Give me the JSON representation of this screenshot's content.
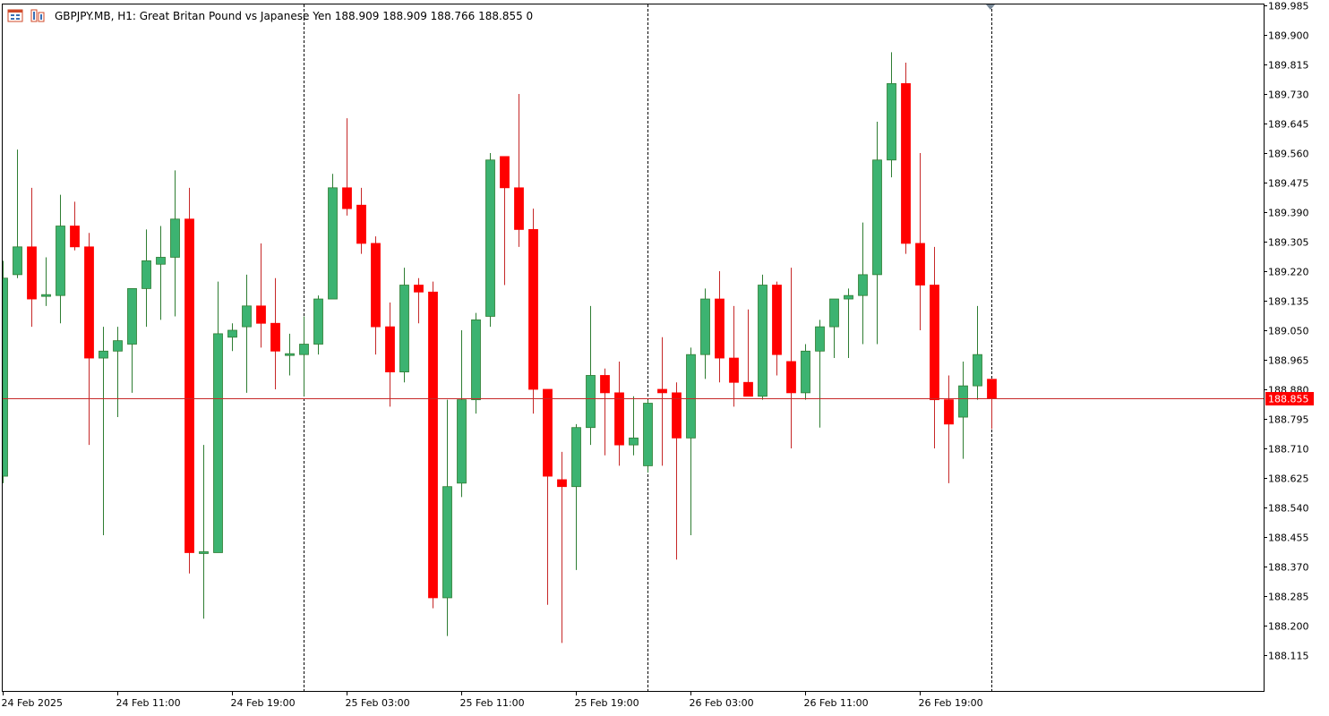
{
  "header": {
    "symbol": "GBPJPY.MB",
    "timeframe": "H1:",
    "description": "Great Britan Pound vs Japanese Yen",
    "ohlc": "188.909 188.909 188.766 188.855",
    "volume": "0"
  },
  "colors": {
    "background": "#ffffff",
    "frame": "#000000",
    "bull": "#3cb371",
    "bear": "#ff0000",
    "wick_bull": "#2e7d32",
    "wick_bear": "#c62828",
    "price_line": "#c62828",
    "price_label_bg": "#ff0000",
    "price_label_text": "#ffffff",
    "period_separator": "#000000"
  },
  "chart_data": {
    "type": "candlestick",
    "symbol": "GBPJPY.MB",
    "timeframe": "H1",
    "grid": false,
    "ylim": [
      188.03,
      189.985
    ],
    "y_ticks": [
      "189.985",
      "189.900",
      "189.815",
      "189.730",
      "189.645",
      "189.560",
      "189.475",
      "189.390",
      "189.305",
      "189.220",
      "189.135",
      "189.050",
      "188.965",
      "188.880",
      "188.795",
      "188.710",
      "188.625",
      "188.540",
      "188.455",
      "188.370",
      "188.285",
      "188.200",
      "188.115"
    ],
    "x_tick_labels": [
      {
        "label": "24 Feb 2025",
        "bar": 0
      },
      {
        "label": "24 Feb 11:00",
        "bar": 8
      },
      {
        "label": "24 Feb 19:00",
        "bar": 16
      },
      {
        "label": "25 Feb 03:00",
        "bar": 24
      },
      {
        "label": "25 Feb 11:00",
        "bar": 32
      },
      {
        "label": "25 Feb 19:00",
        "bar": 40
      },
      {
        "label": "26 Feb 03:00",
        "bar": 48
      },
      {
        "label": "26 Feb 11:00",
        "bar": 56
      },
      {
        "label": "26 Feb 19:00",
        "bar": 64
      }
    ],
    "period_separators": [
      21,
      45,
      69
    ],
    "current_price": 188.855,
    "current_price_label": "188.855",
    "candles": [
      {
        "o": 188.63,
        "h": 189.25,
        "l": 188.61,
        "c": 189.2
      },
      {
        "o": 189.21,
        "h": 189.57,
        "l": 189.2,
        "c": 189.29
      },
      {
        "o": 189.29,
        "h": 189.46,
        "l": 189.06,
        "c": 189.14
      },
      {
        "o": 189.15,
        "h": 189.26,
        "l": 189.12,
        "c": 189.15
      },
      {
        "o": 189.15,
        "h": 189.44,
        "l": 189.07,
        "c": 189.35
      },
      {
        "o": 189.35,
        "h": 189.42,
        "l": 189.28,
        "c": 189.29
      },
      {
        "o": 189.29,
        "h": 189.33,
        "l": 188.72,
        "c": 188.97
      },
      {
        "o": 188.97,
        "h": 189.06,
        "l": 188.46,
        "c": 188.99
      },
      {
        "o": 188.99,
        "h": 189.06,
        "l": 188.8,
        "c": 189.02
      },
      {
        "o": 189.01,
        "h": 189.17,
        "l": 188.87,
        "c": 189.17
      },
      {
        "o": 189.17,
        "h": 189.34,
        "l": 189.06,
        "c": 189.25
      },
      {
        "o": 189.24,
        "h": 189.35,
        "l": 189.08,
        "c": 189.26
      },
      {
        "o": 189.26,
        "h": 189.51,
        "l": 189.09,
        "c": 189.37
      },
      {
        "o": 189.37,
        "h": 189.46,
        "l": 188.35,
        "c": 188.41
      },
      {
        "o": 188.41,
        "h": 188.72,
        "l": 188.22,
        "c": 188.41
      },
      {
        "o": 188.41,
        "h": 189.19,
        "l": 188.41,
        "c": 189.04
      },
      {
        "o": 189.03,
        "h": 189.07,
        "l": 188.99,
        "c": 189.05
      },
      {
        "o": 189.06,
        "h": 189.21,
        "l": 188.87,
        "c": 189.12
      },
      {
        "o": 189.12,
        "h": 189.3,
        "l": 189.0,
        "c": 189.07
      },
      {
        "o": 189.07,
        "h": 189.2,
        "l": 188.88,
        "c": 188.99
      },
      {
        "o": 188.98,
        "h": 189.04,
        "l": 188.92,
        "c": 188.98
      },
      {
        "o": 188.98,
        "h": 189.09,
        "l": 188.86,
        "c": 189.01
      },
      {
        "o": 189.01,
        "h": 189.15,
        "l": 188.98,
        "c": 189.14
      },
      {
        "o": 189.14,
        "h": 189.5,
        "l": 189.14,
        "c": 189.46
      },
      {
        "o": 189.46,
        "h": 189.66,
        "l": 189.38,
        "c": 189.4
      },
      {
        "o": 189.41,
        "h": 189.46,
        "l": 189.27,
        "c": 189.3
      },
      {
        "o": 189.3,
        "h": 189.32,
        "l": 188.98,
        "c": 189.06
      },
      {
        "o": 189.06,
        "h": 189.13,
        "l": 188.83,
        "c": 188.93
      },
      {
        "o": 188.93,
        "h": 189.23,
        "l": 188.9,
        "c": 189.18
      },
      {
        "o": 189.18,
        "h": 189.2,
        "l": 189.07,
        "c": 189.16
      },
      {
        "o": 189.16,
        "h": 189.19,
        "l": 188.25,
        "c": 188.28
      },
      {
        "o": 188.28,
        "h": 188.85,
        "l": 188.17,
        "c": 188.6
      },
      {
        "o": 188.61,
        "h": 189.05,
        "l": 188.57,
        "c": 188.85
      },
      {
        "o": 188.85,
        "h": 189.1,
        "l": 188.81,
        "c": 189.08
      },
      {
        "o": 189.09,
        "h": 189.56,
        "l": 189.06,
        "c": 189.54
      },
      {
        "o": 189.55,
        "h": 189.55,
        "l": 189.18,
        "c": 189.46
      },
      {
        "o": 189.46,
        "h": 189.73,
        "l": 189.29,
        "c": 189.34
      },
      {
        "o": 189.34,
        "h": 189.4,
        "l": 188.81,
        "c": 188.88
      },
      {
        "o": 188.88,
        "h": 188.88,
        "l": 188.26,
        "c": 188.63
      },
      {
        "o": 188.62,
        "h": 188.7,
        "l": 188.15,
        "c": 188.6
      },
      {
        "o": 188.6,
        "h": 188.78,
        "l": 188.36,
        "c": 188.77
      },
      {
        "o": 188.77,
        "h": 189.12,
        "l": 188.72,
        "c": 188.92
      },
      {
        "o": 188.92,
        "h": 188.94,
        "l": 188.69,
        "c": 188.87
      },
      {
        "o": 188.87,
        "h": 188.96,
        "l": 188.66,
        "c": 188.72
      },
      {
        "o": 188.72,
        "h": 188.86,
        "l": 188.69,
        "c": 188.74
      },
      {
        "o": 188.66,
        "h": 188.85,
        "l": 188.64,
        "c": 188.84
      },
      {
        "o": 188.88,
        "h": 189.03,
        "l": 188.66,
        "c": 188.87
      },
      {
        "o": 188.87,
        "h": 188.9,
        "l": 188.39,
        "c": 188.74
      },
      {
        "o": 188.74,
        "h": 189.0,
        "l": 188.46,
        "c": 188.98
      },
      {
        "o": 188.98,
        "h": 189.17,
        "l": 188.91,
        "c": 189.14
      },
      {
        "o": 189.14,
        "h": 189.22,
        "l": 188.9,
        "c": 188.97
      },
      {
        "o": 188.97,
        "h": 189.12,
        "l": 188.83,
        "c": 188.9
      },
      {
        "o": 188.9,
        "h": 189.11,
        "l": 188.87,
        "c": 188.86
      },
      {
        "o": 188.86,
        "h": 189.21,
        "l": 188.85,
        "c": 189.18
      },
      {
        "o": 189.18,
        "h": 189.19,
        "l": 188.92,
        "c": 188.98
      },
      {
        "o": 188.96,
        "h": 189.23,
        "l": 188.71,
        "c": 188.87
      },
      {
        "o": 188.87,
        "h": 189.01,
        "l": 188.85,
        "c": 188.99
      },
      {
        "o": 188.99,
        "h": 189.08,
        "l": 188.77,
        "c": 189.06
      },
      {
        "o": 189.06,
        "h": 189.14,
        "l": 188.97,
        "c": 189.14
      },
      {
        "o": 189.14,
        "h": 189.17,
        "l": 188.97,
        "c": 189.15
      },
      {
        "o": 189.15,
        "h": 189.36,
        "l": 189.01,
        "c": 189.21
      },
      {
        "o": 189.21,
        "h": 189.65,
        "l": 189.01,
        "c": 189.54
      },
      {
        "o": 189.54,
        "h": 189.85,
        "l": 189.49,
        "c": 189.76
      },
      {
        "o": 189.76,
        "h": 189.82,
        "l": 189.27,
        "c": 189.3
      },
      {
        "o": 189.3,
        "h": 189.56,
        "l": 189.05,
        "c": 189.18
      },
      {
        "o": 189.18,
        "h": 189.29,
        "l": 188.71,
        "c": 188.85
      },
      {
        "o": 188.85,
        "h": 188.92,
        "l": 188.61,
        "c": 188.78
      },
      {
        "o": 188.8,
        "h": 188.96,
        "l": 188.68,
        "c": 188.89
      },
      {
        "o": 188.89,
        "h": 189.12,
        "l": 188.85,
        "c": 188.98
      },
      {
        "o": 188.909,
        "h": 188.909,
        "l": 188.766,
        "c": 188.855
      }
    ]
  }
}
